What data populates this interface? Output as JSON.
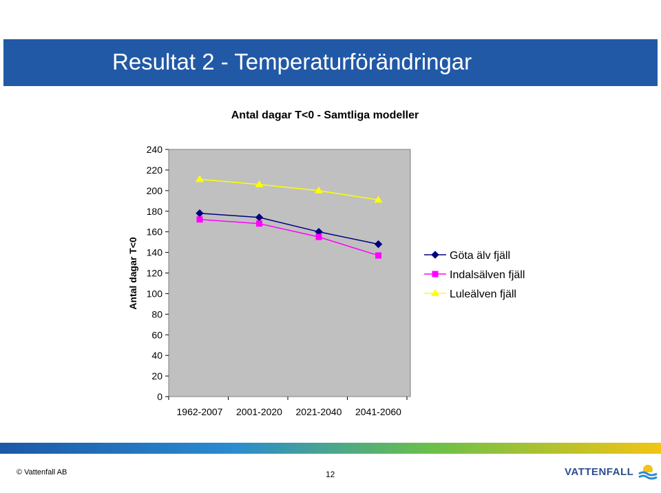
{
  "slide": {
    "title": "Resultat 2 - Temperaturförändringar",
    "copyright": "© Vattenfall AB",
    "page_number": "12",
    "logo_text": "VATTENFALL"
  },
  "chart_data": {
    "type": "line",
    "title": "Antal dagar T<0 - Samtliga modeller",
    "ylabel": "Antal dagar T<0",
    "xlabel": "",
    "categories": [
      "1962-2007",
      "2001-2020",
      "2021-2040",
      "2041-2060"
    ],
    "ylim": [
      0,
      240
    ],
    "yticks": [
      0,
      20,
      40,
      60,
      80,
      100,
      120,
      140,
      160,
      180,
      200,
      220,
      240
    ],
    "grid": false,
    "legend_position": "right",
    "series": [
      {
        "name": "Göta älv fjäll",
        "values": [
          178,
          174,
          160,
          148
        ],
        "color": "#000080",
        "marker": "diamond"
      },
      {
        "name": "Indalsälven fjäll",
        "values": [
          172,
          168,
          155,
          137
        ],
        "color": "#ff00ff",
        "marker": "square"
      },
      {
        "name": "Luleälven fjäll",
        "values": [
          211,
          206,
          200,
          191
        ],
        "color": "#ffff00",
        "marker": "triangle"
      }
    ]
  }
}
